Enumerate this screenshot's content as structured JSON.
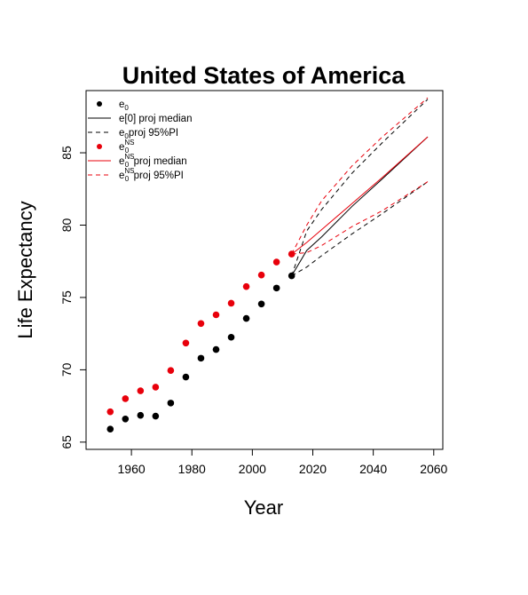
{
  "chart_data": {
    "type": "line",
    "title": "United States of America",
    "xlabel": "Year",
    "ylabel": "Life Expectancy",
    "xlim": [
      1945,
      2063
    ],
    "ylim": [
      64.5,
      89.3
    ],
    "xticks": [
      1960,
      1980,
      2000,
      2020,
      2040,
      2060
    ],
    "yticks": [
      65,
      70,
      75,
      80,
      85
    ],
    "grid": false,
    "legend_position": "top-left",
    "legend": [
      {
        "key": "e0",
        "base": "e",
        "sub": "0",
        "sup": "",
        "rest": "",
        "color": "#000000",
        "symbol": "point"
      },
      {
        "key": "median",
        "base": "e[0] proj median",
        "sub": "",
        "sup": "",
        "rest": "",
        "color": "#000000",
        "symbol": "solid"
      },
      {
        "key": "pi",
        "base": "e",
        "sub": "0",
        "sup": "",
        "rest": "proj 95%PI",
        "color": "#000000",
        "symbol": "dashed"
      },
      {
        "key": "e0ns",
        "base": "e",
        "sub": "0",
        "sup": "NS",
        "rest": "",
        "color": "#e8000b",
        "symbol": "point"
      },
      {
        "key": "ns_median",
        "base": "e",
        "sub": "0",
        "sup": "NS",
        "rest": "proj median",
        "color": "#e8000b",
        "symbol": "solid"
      },
      {
        "key": "ns_pi",
        "base": "e",
        "sub": "0",
        "sup": "NS",
        "rest": "proj 95%PI",
        "color": "#e8000b",
        "symbol": "dashed"
      }
    ],
    "series": [
      {
        "key": "e0",
        "kind": "points",
        "color": "#000000",
        "x": [
          1953,
          1958,
          1963,
          1968,
          1973,
          1978,
          1983,
          1988,
          1993,
          1998,
          2003,
          2008,
          2013
        ],
        "y": [
          65.9,
          66.6,
          66.85,
          66.8,
          67.7,
          69.5,
          70.8,
          71.4,
          72.25,
          73.55,
          74.55,
          75.65,
          76.5
        ]
      },
      {
        "key": "e0ns",
        "kind": "points",
        "color": "#e8000b",
        "x": [
          1953,
          1958,
          1963,
          1968,
          1973,
          1978,
          1983,
          1988,
          1993,
          1998,
          2003,
          2008,
          2013
        ],
        "y": [
          67.1,
          68.0,
          68.55,
          68.8,
          69.95,
          71.85,
          73.2,
          73.8,
          74.6,
          75.75,
          76.55,
          77.45,
          78.0
        ]
      },
      {
        "key": "median",
        "kind": "line",
        "dash": false,
        "color": "#000000",
        "x": [
          2013,
          2018,
          2023,
          2033,
          2043,
          2058
        ],
        "y": [
          76.5,
          78.25,
          79.2,
          81.3,
          83.2,
          86.1
        ]
      },
      {
        "key": "pi_upper",
        "kind": "line",
        "dash": true,
        "color": "#000000",
        "x": [
          2013,
          2018,
          2023,
          2033,
          2043,
          2058
        ],
        "y": [
          76.5,
          79.6,
          81.1,
          83.6,
          85.7,
          88.7
        ]
      },
      {
        "key": "pi_lower",
        "kind": "line",
        "dash": true,
        "color": "#000000",
        "x": [
          2013,
          2018,
          2023,
          2033,
          2043,
          2058
        ],
        "y": [
          76.5,
          77.1,
          77.9,
          79.4,
          80.8,
          83.0
        ]
      },
      {
        "key": "ns_median",
        "kind": "line",
        "dash": false,
        "color": "#e8000b",
        "x": [
          2013,
          2018,
          2023,
          2033,
          2043,
          2058
        ],
        "y": [
          78.0,
          78.8,
          79.7,
          81.5,
          83.3,
          86.1
        ]
      },
      {
        "key": "ns_pi_upper",
        "kind": "line",
        "dash": true,
        "color": "#e8000b",
        "x": [
          2013,
          2018,
          2023,
          2033,
          2043,
          2058
        ],
        "y": [
          78.0,
          80.0,
          81.7,
          84.1,
          86.1,
          88.8
        ]
      },
      {
        "key": "ns_pi_lower",
        "kind": "line",
        "dash": true,
        "color": "#e8000b",
        "x": [
          2013,
          2018,
          2023,
          2033,
          2043,
          2058
        ],
        "y": [
          78.0,
          78.1,
          78.6,
          79.9,
          81.0,
          83.0
        ]
      }
    ]
  }
}
